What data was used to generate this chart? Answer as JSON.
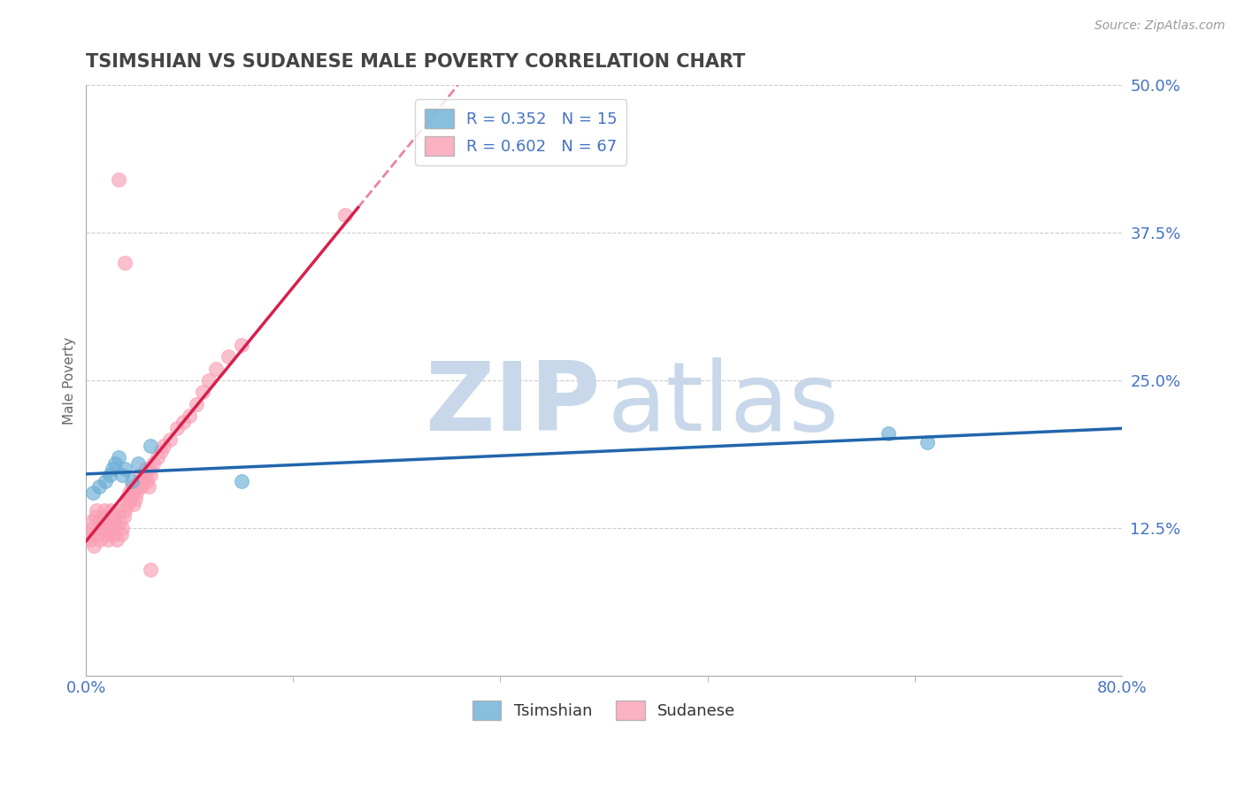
{
  "title": "TSIMSHIAN VS SUDANESE MALE POVERTY CORRELATION CHART",
  "source": "Source: ZipAtlas.com",
  "xlabel_label": "Tsimshian",
  "ylabel_label": "Male Poverty",
  "xmin": 0.0,
  "xmax": 0.8,
  "ymin": 0.0,
  "ymax": 0.5,
  "ytick_vals": [
    0.125,
    0.25,
    0.375,
    0.5
  ],
  "ytick_labels": [
    "12.5%",
    "25.0%",
    "37.5%",
    "50.0%"
  ],
  "xtick_vals": [
    0.0,
    0.8
  ],
  "xtick_labels": [
    "0.0%",
    "80.0%"
  ],
  "minor_xtick_vals": [
    0.16,
    0.32,
    0.48,
    0.64
  ],
  "tsimshian_R": 0.352,
  "tsimshian_N": 15,
  "sudanese_R": 0.602,
  "sudanese_N": 67,
  "tsimshian_color": "#6baed6",
  "sudanese_color": "#fa9fb5",
  "tsimshian_line_color": "#2166ac",
  "sudanese_line_color": "#d6204b",
  "tsimshian_x": [
    0.005,
    0.01,
    0.015,
    0.018,
    0.02,
    0.022,
    0.025,
    0.028,
    0.03,
    0.035,
    0.04,
    0.05,
    0.12,
    0.62,
    0.65
  ],
  "tsimshian_y": [
    0.155,
    0.16,
    0.165,
    0.17,
    0.175,
    0.18,
    0.185,
    0.17,
    0.175,
    0.165,
    0.18,
    0.195,
    0.165,
    0.205,
    0.198
  ],
  "sudanese_x": [
    0.002,
    0.003,
    0.004,
    0.005,
    0.006,
    0.007,
    0.008,
    0.009,
    0.01,
    0.011,
    0.012,
    0.013,
    0.014,
    0.015,
    0.016,
    0.017,
    0.018,
    0.019,
    0.02,
    0.021,
    0.022,
    0.023,
    0.024,
    0.025,
    0.026,
    0.027,
    0.028,
    0.029,
    0.03,
    0.031,
    0.032,
    0.033,
    0.034,
    0.035,
    0.036,
    0.037,
    0.038,
    0.039,
    0.04,
    0.041,
    0.042,
    0.043,
    0.044,
    0.045,
    0.046,
    0.047,
    0.048,
    0.049,
    0.05,
    0.052,
    0.055,
    0.058,
    0.06,
    0.065,
    0.07,
    0.075,
    0.08,
    0.085,
    0.09,
    0.095,
    0.1,
    0.11,
    0.12,
    0.025,
    0.03,
    0.2,
    0.05
  ],
  "sudanese_y": [
    0.12,
    0.115,
    0.13,
    0.125,
    0.11,
    0.135,
    0.14,
    0.12,
    0.13,
    0.115,
    0.125,
    0.135,
    0.14,
    0.13,
    0.12,
    0.115,
    0.125,
    0.14,
    0.135,
    0.12,
    0.13,
    0.125,
    0.115,
    0.14,
    0.13,
    0.12,
    0.125,
    0.135,
    0.14,
    0.15,
    0.145,
    0.155,
    0.15,
    0.16,
    0.155,
    0.145,
    0.15,
    0.155,
    0.16,
    0.165,
    0.17,
    0.16,
    0.165,
    0.17,
    0.175,
    0.165,
    0.16,
    0.175,
    0.17,
    0.18,
    0.185,
    0.19,
    0.195,
    0.2,
    0.21,
    0.215,
    0.22,
    0.23,
    0.24,
    0.25,
    0.26,
    0.27,
    0.28,
    0.42,
    0.35,
    0.39,
    0.09
  ],
  "bg_color": "#ffffff",
  "grid_color": "#cccccc",
  "axis_color": "#aaaaaa",
  "tick_color": "#4472c4",
  "title_color": "#444444",
  "watermark_color_zip": "#c8d8ea",
  "watermark_color_atlas": "#c8d8ea"
}
